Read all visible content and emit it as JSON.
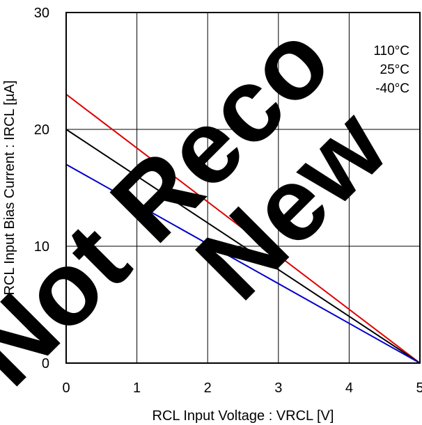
{
  "chart_data": {
    "type": "line",
    "title": "",
    "xlabel": "RCL Input Voltage : VRCL [V]",
    "ylabel": "RCL Input Bias Current : IRCL [µA]",
    "xlim": [
      0,
      5
    ],
    "ylim": [
      0,
      30
    ],
    "x_ticks": [
      0,
      1,
      2,
      3,
      4,
      5
    ],
    "y_ticks": [
      0,
      10,
      20,
      30
    ],
    "x_tick_labels": [
      "0",
      "1",
      "2",
      "3",
      "4",
      "5"
    ],
    "y_tick_labels": [
      "0",
      "10",
      "20",
      "30"
    ],
    "grid": true,
    "legend_position": "top-right",
    "series": [
      {
        "name": "110°C",
        "color": "#e00000",
        "x": [
          0,
          5
        ],
        "y": [
          23,
          0
        ]
      },
      {
        "name": "25°C",
        "color": "#000000",
        "x": [
          0,
          5
        ],
        "y": [
          20,
          0
        ]
      },
      {
        "name": "-40°C",
        "color": "#0000cc",
        "x": [
          0,
          5
        ],
        "y": [
          17,
          0
        ]
      }
    ]
  },
  "watermark": {
    "line1": "Not Reco",
    "line2": "New"
  }
}
